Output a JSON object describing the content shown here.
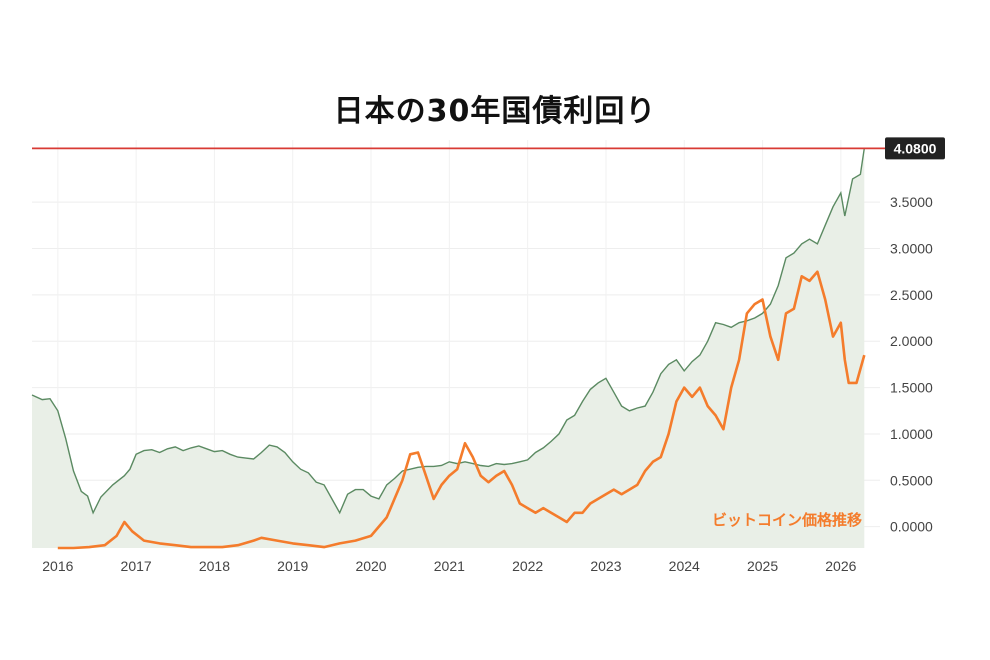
{
  "colors": {
    "yield_line": "#5b8a62",
    "yield_fill": "#e9efe7",
    "btc_line": "#f47c2c",
    "threshold_line": "#d83a34",
    "badge_bg": "#222222",
    "text": "#444444"
  },
  "chart_data": {
    "type": "line",
    "title": "日本の30年国債利回り",
    "xlabel": "",
    "ylabel": "",
    "x_ticks": [
      "2016",
      "2017",
      "2018",
      "2019",
      "2020",
      "2021",
      "2022",
      "2023",
      "2024",
      "2025",
      "2026"
    ],
    "y_ticks": [
      "0.0000",
      "0.5000",
      "1.0000",
      "1.5000",
      "2.0000",
      "2.5000",
      "3.0000",
      "3.5000"
    ],
    "xlim": [
      2015.67,
      2026.5
    ],
    "ylim": [
      -0.23,
      4.17
    ],
    "grid": true,
    "axis_side": "right",
    "threshold": {
      "value": 4.08,
      "label": "4.0800"
    },
    "annotation": "ビットコイン価格推移",
    "series": [
      {
        "role": "yield",
        "style": "area",
        "points": [
          [
            2015.67,
            1.42
          ],
          [
            2015.8,
            1.37
          ],
          [
            2015.9,
            1.38
          ],
          [
            2016.0,
            1.25
          ],
          [
            2016.1,
            0.95
          ],
          [
            2016.2,
            0.6
          ],
          [
            2016.3,
            0.38
          ],
          [
            2016.38,
            0.33
          ],
          [
            2016.45,
            0.15
          ],
          [
            2016.55,
            0.32
          ],
          [
            2016.7,
            0.45
          ],
          [
            2016.85,
            0.55
          ],
          [
            2016.92,
            0.62
          ],
          [
            2017.0,
            0.78
          ],
          [
            2017.1,
            0.82
          ],
          [
            2017.2,
            0.83
          ],
          [
            2017.3,
            0.8
          ],
          [
            2017.4,
            0.84
          ],
          [
            2017.5,
            0.86
          ],
          [
            2017.6,
            0.82
          ],
          [
            2017.7,
            0.85
          ],
          [
            2017.8,
            0.87
          ],
          [
            2017.9,
            0.84
          ],
          [
            2018.0,
            0.81
          ],
          [
            2018.1,
            0.82
          ],
          [
            2018.2,
            0.78
          ],
          [
            2018.3,
            0.75
          ],
          [
            2018.4,
            0.74
          ],
          [
            2018.5,
            0.73
          ],
          [
            2018.6,
            0.8
          ],
          [
            2018.7,
            0.88
          ],
          [
            2018.8,
            0.86
          ],
          [
            2018.9,
            0.8
          ],
          [
            2019.0,
            0.7
          ],
          [
            2019.1,
            0.62
          ],
          [
            2019.2,
            0.58
          ],
          [
            2019.3,
            0.48
          ],
          [
            2019.4,
            0.45
          ],
          [
            2019.5,
            0.3
          ],
          [
            2019.6,
            0.15
          ],
          [
            2019.7,
            0.35
          ],
          [
            2019.8,
            0.4
          ],
          [
            2019.9,
            0.4
          ],
          [
            2020.0,
            0.33
          ],
          [
            2020.1,
            0.3
          ],
          [
            2020.2,
            0.45
          ],
          [
            2020.3,
            0.52
          ],
          [
            2020.4,
            0.6
          ],
          [
            2020.5,
            0.62
          ],
          [
            2020.6,
            0.64
          ],
          [
            2020.7,
            0.65
          ],
          [
            2020.8,
            0.65
          ],
          [
            2020.9,
            0.66
          ],
          [
            2021.0,
            0.7
          ],
          [
            2021.1,
            0.68
          ],
          [
            2021.2,
            0.7
          ],
          [
            2021.3,
            0.68
          ],
          [
            2021.4,
            0.66
          ],
          [
            2021.5,
            0.65
          ],
          [
            2021.6,
            0.68
          ],
          [
            2021.7,
            0.67
          ],
          [
            2021.8,
            0.68
          ],
          [
            2021.9,
            0.7
          ],
          [
            2022.0,
            0.72
          ],
          [
            2022.1,
            0.8
          ],
          [
            2022.2,
            0.85
          ],
          [
            2022.3,
            0.92
          ],
          [
            2022.4,
            1.0
          ],
          [
            2022.5,
            1.15
          ],
          [
            2022.6,
            1.2
          ],
          [
            2022.7,
            1.35
          ],
          [
            2022.8,
            1.48
          ],
          [
            2022.9,
            1.55
          ],
          [
            2023.0,
            1.6
          ],
          [
            2023.1,
            1.45
          ],
          [
            2023.2,
            1.3
          ],
          [
            2023.3,
            1.25
          ],
          [
            2023.4,
            1.28
          ],
          [
            2023.5,
            1.3
          ],
          [
            2023.6,
            1.45
          ],
          [
            2023.7,
            1.65
          ],
          [
            2023.8,
            1.75
          ],
          [
            2023.9,
            1.8
          ],
          [
            2024.0,
            1.68
          ],
          [
            2024.1,
            1.78
          ],
          [
            2024.2,
            1.85
          ],
          [
            2024.3,
            2.0
          ],
          [
            2024.4,
            2.2
          ],
          [
            2024.5,
            2.18
          ],
          [
            2024.6,
            2.15
          ],
          [
            2024.7,
            2.2
          ],
          [
            2024.8,
            2.22
          ],
          [
            2024.9,
            2.25
          ],
          [
            2025.0,
            2.3
          ],
          [
            2025.1,
            2.4
          ],
          [
            2025.2,
            2.6
          ],
          [
            2025.3,
            2.9
          ],
          [
            2025.4,
            2.95
          ],
          [
            2025.5,
            3.05
          ],
          [
            2025.6,
            3.1
          ],
          [
            2025.7,
            3.05
          ],
          [
            2025.8,
            3.25
          ],
          [
            2025.9,
            3.45
          ],
          [
            2026.0,
            3.6
          ],
          [
            2026.05,
            3.35
          ],
          [
            2026.15,
            3.75
          ],
          [
            2026.25,
            3.8
          ],
          [
            2026.3,
            4.08
          ]
        ]
      },
      {
        "role": "bitcoin",
        "style": "line",
        "points": [
          [
            2016.0,
            -0.23
          ],
          [
            2016.2,
            -0.23
          ],
          [
            2016.4,
            -0.22
          ],
          [
            2016.6,
            -0.2
          ],
          [
            2016.75,
            -0.1
          ],
          [
            2016.85,
            0.05
          ],
          [
            2016.95,
            -0.05
          ],
          [
            2017.1,
            -0.15
          ],
          [
            2017.3,
            -0.18
          ],
          [
            2017.5,
            -0.2
          ],
          [
            2017.7,
            -0.22
          ],
          [
            2017.9,
            -0.22
          ],
          [
            2018.1,
            -0.22
          ],
          [
            2018.3,
            -0.2
          ],
          [
            2018.5,
            -0.15
          ],
          [
            2018.6,
            -0.12
          ],
          [
            2018.8,
            -0.15
          ],
          [
            2019.0,
            -0.18
          ],
          [
            2019.2,
            -0.2
          ],
          [
            2019.4,
            -0.22
          ],
          [
            2019.6,
            -0.18
          ],
          [
            2019.8,
            -0.15
          ],
          [
            2020.0,
            -0.1
          ],
          [
            2020.2,
            0.1
          ],
          [
            2020.3,
            0.3
          ],
          [
            2020.4,
            0.5
          ],
          [
            2020.5,
            0.78
          ],
          [
            2020.6,
            0.8
          ],
          [
            2020.7,
            0.55
          ],
          [
            2020.8,
            0.3
          ],
          [
            2020.9,
            0.45
          ],
          [
            2021.0,
            0.55
          ],
          [
            2021.1,
            0.62
          ],
          [
            2021.2,
            0.9
          ],
          [
            2021.3,
            0.75
          ],
          [
            2021.4,
            0.55
          ],
          [
            2021.5,
            0.48
          ],
          [
            2021.6,
            0.55
          ],
          [
            2021.7,
            0.6
          ],
          [
            2021.8,
            0.45
          ],
          [
            2021.9,
            0.25
          ],
          [
            2022.0,
            0.2
          ],
          [
            2022.1,
            0.15
          ],
          [
            2022.2,
            0.2
          ],
          [
            2022.3,
            0.15
          ],
          [
            2022.4,
            0.1
          ],
          [
            2022.5,
            0.05
          ],
          [
            2022.6,
            0.15
          ],
          [
            2022.7,
            0.15
          ],
          [
            2022.8,
            0.25
          ],
          [
            2022.9,
            0.3
          ],
          [
            2023.0,
            0.35
          ],
          [
            2023.1,
            0.4
          ],
          [
            2023.2,
            0.35
          ],
          [
            2023.3,
            0.4
          ],
          [
            2023.4,
            0.45
          ],
          [
            2023.5,
            0.6
          ],
          [
            2023.6,
            0.7
          ],
          [
            2023.7,
            0.75
          ],
          [
            2023.8,
            1.0
          ],
          [
            2023.9,
            1.35
          ],
          [
            2024.0,
            1.5
          ],
          [
            2024.1,
            1.4
          ],
          [
            2024.2,
            1.5
          ],
          [
            2024.3,
            1.3
          ],
          [
            2024.4,
            1.2
          ],
          [
            2024.5,
            1.05
          ],
          [
            2024.6,
            1.5
          ],
          [
            2024.7,
            1.8
          ],
          [
            2024.8,
            2.3
          ],
          [
            2024.9,
            2.4
          ],
          [
            2025.0,
            2.45
          ],
          [
            2025.1,
            2.05
          ],
          [
            2025.2,
            1.8
          ],
          [
            2025.3,
            2.3
          ],
          [
            2025.4,
            2.35
          ],
          [
            2025.5,
            2.7
          ],
          [
            2025.6,
            2.65
          ],
          [
            2025.7,
            2.75
          ],
          [
            2025.8,
            2.45
          ],
          [
            2025.9,
            2.05
          ],
          [
            2026.0,
            2.2
          ],
          [
            2026.05,
            1.8
          ],
          [
            2026.1,
            1.55
          ],
          [
            2026.2,
            1.55
          ],
          [
            2026.25,
            1.7
          ],
          [
            2026.3,
            1.85
          ]
        ]
      }
    ]
  }
}
